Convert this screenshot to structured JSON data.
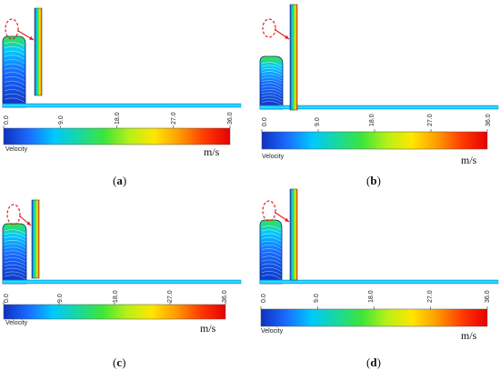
{
  "colorbar": {
    "ticks": [
      "0.0",
      "9.0",
      "18.0",
      "27.0",
      "36.0"
    ],
    "quantity_label": "Velocity",
    "unit": "m/s",
    "colors": [
      "#1030c0",
      "#1a6bff",
      "#00c8ff",
      "#18d8a0",
      "#3ce53a",
      "#b6f017",
      "#ffe600",
      "#ff9a00",
      "#ff3a00",
      "#e80000"
    ]
  },
  "highlight_color": "#e02020",
  "panels": [
    {
      "id": "a",
      "caption_letter": "a"
    },
    {
      "id": "b",
      "caption_letter": "b"
    },
    {
      "id": "c",
      "caption_letter": "c"
    },
    {
      "id": "d",
      "caption_letter": "d"
    }
  ],
  "captions": {
    "a": {
      "open": "(",
      "letter": "a",
      "close": ")"
    },
    "b": {
      "open": "(",
      "letter": "b",
      "close": ")"
    },
    "c": {
      "open": "(",
      "letter": "c",
      "close": ")"
    },
    "d": {
      "open": "(",
      "letter": "d",
      "close": ")"
    }
  }
}
